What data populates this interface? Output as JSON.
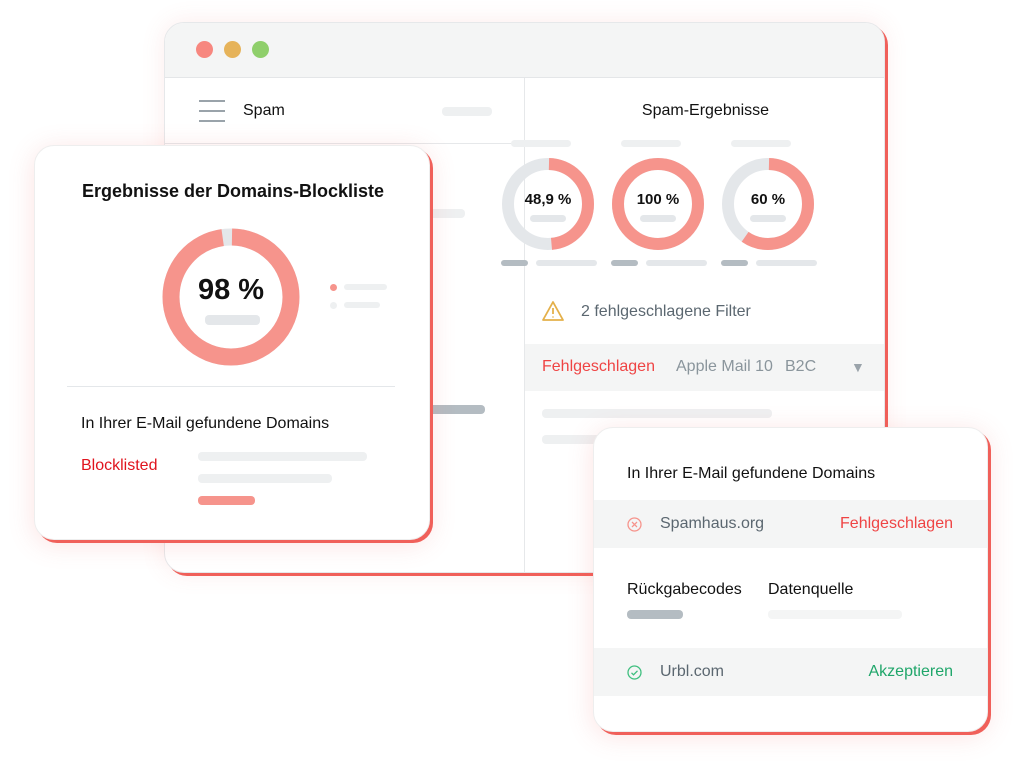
{
  "window": {
    "sidebar_title": "Spam",
    "results_title": "Spam-Ergebnisse",
    "donuts": [
      {
        "label": "48,9 %",
        "value": 48.9
      },
      {
        "label": "100 %",
        "value": 100
      },
      {
        "label": "60 %",
        "value": 60
      }
    ],
    "warning": "2 fehlgeschlagene Filter",
    "filter_row": {
      "status": "Fehlgeschlagen",
      "client": "Apple Mail 10",
      "segment": "B2C"
    }
  },
  "blocklist_card": {
    "title": "Ergebnisse der Domains-Blockliste",
    "donut": {
      "label": "98 %",
      "value": 98
    },
    "domains_title": "In Ihrer E-Mail gefundene Domains",
    "status": "Blocklisted"
  },
  "domains_card": {
    "title": "In Ihrer E-Mail gefundene Domains",
    "rows": [
      {
        "domain": "Spamhaus.org",
        "status": "Fehlgeschlagen",
        "icon": "x-circle-icon"
      },
      {
        "domain": "Urbl.com",
        "status": "Akzeptieren",
        "icon": "check-circle-icon"
      }
    ],
    "col1": "Rückgabecodes",
    "col2": "Datenquelle"
  },
  "colors": {
    "accent": "#f6948c",
    "fail": "#ef4444",
    "ok": "#1fa66a",
    "track": "#e4e7ea"
  }
}
